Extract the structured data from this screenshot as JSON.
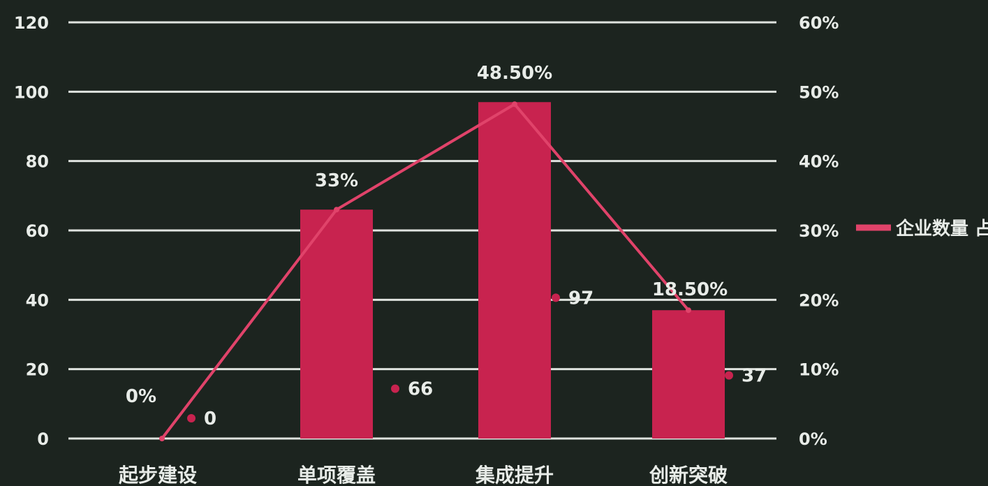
{
  "chart_data": {
    "type": "bar",
    "categories": [
      "起步建设",
      "单项覆盖",
      "集成提升",
      "创新突破"
    ],
    "series": [
      {
        "kind": "bar",
        "axis": "left",
        "values": [
          0,
          66,
          97,
          37
        ],
        "value_labels": [
          "0",
          "66",
          "97",
          "37"
        ]
      },
      {
        "kind": "line",
        "axis": "right",
        "values": [
          0,
          33,
          48.5,
          18.5
        ],
        "value_labels": [
          "0%",
          "33%",
          "48.50%",
          "18.50%"
        ]
      }
    ],
    "legend_text": "企业数量 占比",
    "left_axis": {
      "ticks": [
        "0",
        "20",
        "40",
        "60",
        "80",
        "100",
        "120"
      ],
      "range": [
        0,
        120
      ]
    },
    "right_axis": {
      "ticks": [
        "0%",
        "10%",
        "20%",
        "30%",
        "40%",
        "50%",
        "60%"
      ],
      "range": [
        0,
        60
      ]
    },
    "grid": true,
    "legend_position": "right",
    "colors": {
      "bar": "#c8234f",
      "line": "#e0436a",
      "grid": "#dfe3df",
      "text": "#e8ece8",
      "background": "#1c241f"
    }
  }
}
